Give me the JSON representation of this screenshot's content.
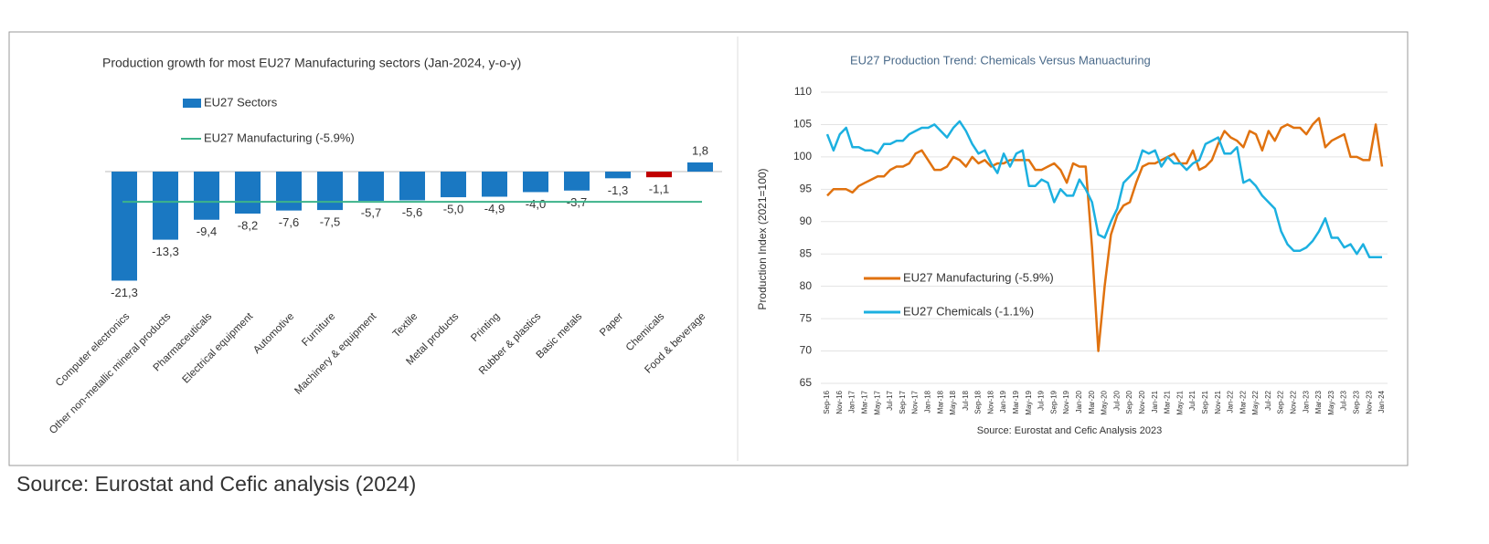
{
  "chart_data": [
    {
      "type": "bar",
      "title": "Production growth for most EU27 Manufacturing sectors (Jan-2024, y-o-y)",
      "categories": [
        "Computer electronics",
        "Other non-metallic mineral products",
        "Pharmaceuticals",
        "Electrical equipment",
        "Automotive",
        "Furniture",
        "Machinery & equipment",
        "Textile",
        "Metal products",
        "Printing",
        "Rubber & plastics",
        "Basic metals",
        "Paper",
        "Chemicals",
        "Food & beverage"
      ],
      "series": [
        {
          "name": "EU27 Sectors",
          "color": "#1a78c2",
          "values": [
            -21.3,
            -13.3,
            -9.4,
            -8.2,
            -7.6,
            -7.5,
            -5.7,
            -5.6,
            -5.0,
            -4.9,
            -4.0,
            -3.7,
            -1.3,
            -1.1,
            1.8
          ],
          "value_labels": [
            "-21,3",
            "-13,3",
            "-9,4",
            "-8,2",
            "-7,6",
            "-7,5",
            "-5,7",
            "-5,6",
            "-5,0",
            "-4,9",
            "-4,0",
            "-3,7",
            "-1,3",
            "-1,1",
            "1,8"
          ],
          "colors": [
            "#1a78c2",
            "#1a78c2",
            "#1a78c2",
            "#1a78c2",
            "#1a78c2",
            "#1a78c2",
            "#1a78c2",
            "#1a78c2",
            "#1a78c2",
            "#1a78c2",
            "#1a78c2",
            "#1a78c2",
            "#1a78c2",
            "#c00000",
            "#1a78c2"
          ]
        }
      ],
      "reference_line": {
        "name": "EU27 Manufacturing (-5.9%)",
        "value": -5.9,
        "color": "#3cb38a"
      },
      "ylim": [
        -23,
        5
      ]
    },
    {
      "type": "line",
      "title": "EU27 Production Trend: Chemicals Versus Manuacturing",
      "y_label": "Production Index (2021=100)",
      "note": "Source: Eurostat and Cefic Analysis 2023",
      "categories": [
        "Sep-16",
        null,
        "Nov-16",
        null,
        "Jan-17",
        null,
        "Mar-17",
        null,
        "May-17",
        null,
        "Jul-17",
        null,
        "Sep-17",
        null,
        "Nov-17",
        null,
        "Jan-18",
        null,
        "Mar-18",
        null,
        "May-18",
        null,
        "Jul-18",
        null,
        "Sep-18",
        null,
        "Nov-18",
        null,
        "Jan-19",
        null,
        "Mar-19",
        null,
        "May-19",
        null,
        "Jul-19",
        null,
        "Sep-19",
        null,
        "Nov-19",
        null,
        "Jan-20",
        null,
        "Mar-20",
        null,
        "May-20",
        null,
        "Jul-20",
        null,
        "Sep-20",
        null,
        "Nov-20",
        null,
        "Jan-21",
        null,
        "Mar-21",
        null,
        "May-21",
        null,
        "Jul-21",
        null,
        "Sep-21",
        null,
        "Nov-21",
        null,
        "Jan-22",
        null,
        "Mar-22",
        null,
        "May-22",
        null,
        "Jul-22",
        null,
        "Sep-22",
        null,
        "Nov-22",
        null,
        "Jan-23",
        null,
        "Mar-23",
        null,
        "May-23",
        null,
        "Jul-23",
        null,
        "Sep-23",
        null,
        "Nov-23",
        null,
        "Jan-24"
      ],
      "series": [
        {
          "name": "EU27 Manufacturing (-5.9%)",
          "color": "#e0720f",
          "values": [
            94,
            95,
            95,
            95,
            94.5,
            95.5,
            96,
            96.5,
            97,
            97,
            98,
            98.5,
            98.5,
            99,
            100.5,
            101,
            99.5,
            98,
            98,
            98.5,
            100,
            99.5,
            98.5,
            100,
            99,
            99.5,
            98.5,
            99,
            99,
            99.5,
            99.5,
            99.5,
            99.5,
            98,
            98,
            98.5,
            99,
            98,
            96,
            99,
            98.5,
            98.5,
            86,
            70,
            80,
            88,
            91,
            92.5,
            93,
            96,
            98.5,
            99,
            99,
            99.5,
            100,
            100.5,
            99,
            99,
            101,
            98,
            98.5,
            99.5,
            102,
            104,
            103,
            102.5,
            101.5,
            104,
            103.5,
            101,
            104,
            102.5,
            104.5,
            105,
            104.5,
            104.5,
            103.5,
            105,
            106,
            101.5,
            102.5,
            103,
            103.5,
            100,
            100,
            99.5,
            99.5,
            105,
            98.5
          ]
        },
        {
          "name": "EU27 Chemicals (-1.1%)",
          "color": "#1cb0e0",
          "values": [
            103.5,
            101,
            103.5,
            104.5,
            101.5,
            101.5,
            101,
            101,
            100.5,
            102,
            102,
            102.5,
            102.5,
            103.5,
            104,
            104.5,
            104.5,
            105,
            104,
            103,
            104.5,
            105.5,
            104,
            102,
            100.5,
            101,
            99,
            97.5,
            100.5,
            98.5,
            100.5,
            101,
            95.5,
            95.5,
            96.5,
            96,
            93,
            95,
            94,
            94,
            96.5,
            95,
            93,
            88,
            87.5,
            90,
            92,
            96,
            97,
            98,
            101,
            100.5,
            101,
            98.5,
            100,
            99,
            99,
            98,
            99,
            99.5,
            102,
            102.5,
            103,
            100.5,
            100.5,
            101.5,
            96,
            96.5,
            95.5,
            94,
            93,
            92,
            88.5,
            86.5,
            85.5,
            85.5,
            86,
            87,
            88.5,
            90.5,
            87.5,
            87.5,
            86,
            86.5,
            85,
            86.5,
            84.5,
            84.5,
            84.5
          ]
        }
      ],
      "ylim": [
        65,
        110
      ],
      "yticks": [
        65,
        70,
        75,
        80,
        85,
        90,
        95,
        100,
        105,
        110
      ],
      "grid": true
    }
  ],
  "source": "Source: Eurostat and Cefic analysis (2024)"
}
